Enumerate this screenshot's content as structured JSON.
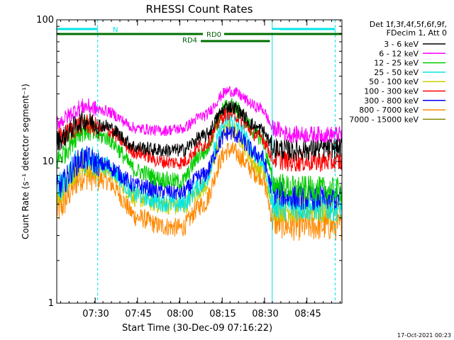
{
  "chart_data": {
    "type": "line",
    "title": "RHESSI Count Rates",
    "xlabel": "Start Time (30-Dec-09 07:16:22)",
    "ylabel": "Count Rate (s⁻¹ detector segment⁻¹)",
    "yscale": "log",
    "ylim": [
      1,
      100
    ],
    "xlim_minutes": [
      0,
      101
    ],
    "x_start": "07:16:22",
    "x_ticks": [
      {
        "label": "07:30",
        "minute": 13.6
      },
      {
        "label": "07:45",
        "minute": 28.6
      },
      {
        "label": "08:00",
        "minute": 43.6
      },
      {
        "label": "08:15",
        "minute": 58.6
      },
      {
        "label": "08:30",
        "minute": 73.6
      },
      {
        "label": "08:45",
        "minute": 88.6
      }
    ],
    "y_ticks": [
      {
        "label": "1",
        "value": 1
      },
      {
        "label": "10",
        "value": 10
      },
      {
        "label": "100",
        "value": 100
      }
    ],
    "legend_header": [
      "Det 1f,3f,4f,5f,6f,9f,",
      "FDecim 1, Att 0"
    ],
    "legend_position": "top-right",
    "keyframes_minutes": [
      0,
      10,
      16,
      29,
      37,
      44,
      52,
      61,
      72,
      77,
      83,
      101
    ],
    "series": [
      {
        "name": "3 - 6 keV",
        "color": "#000000",
        "noise": 0.05,
        "values": [
          14.0,
          19.5,
          18.0,
          12.5,
          12.0,
          12.0,
          15.0,
          24.5,
          17.0,
          12.5,
          12.0,
          12.5
        ]
      },
      {
        "name": "6 - 12 keV",
        "color": "#ff00ff",
        "noise": 0.04,
        "values": [
          19.0,
          24.5,
          23.0,
          17.0,
          16.5,
          17.0,
          21.0,
          31.5,
          24.0,
          17.0,
          15.5,
          15.5
        ]
      },
      {
        "name": "12 - 25 keV",
        "color": "#00cc00",
        "noise": 0.06,
        "values": [
          10.5,
          17.0,
          15.0,
          8.5,
          7.5,
          7.2,
          11.5,
          25.0,
          15.0,
          7.0,
          6.5,
          6.3
        ]
      },
      {
        "name": "25 - 50 keV",
        "color": "#00e5e5",
        "noise": 0.07,
        "values": [
          6.5,
          10.5,
          9.5,
          5.8,
          5.2,
          5.0,
          7.0,
          19.5,
          10.5,
          5.0,
          4.8,
          4.8
        ]
      },
      {
        "name": "50 - 100 keV",
        "color": "#cccc00",
        "noise": 0.07,
        "values": [
          6.0,
          10.0,
          9.0,
          5.5,
          5.0,
          4.8,
          6.5,
          17.0,
          9.0,
          4.8,
          4.6,
          4.6
        ]
      },
      {
        "name": "100 - 300 keV",
        "color": "#ff0000",
        "noise": 0.05,
        "values": [
          14.5,
          18.5,
          17.0,
          11.5,
          10.0,
          9.8,
          13.0,
          22.0,
          15.0,
          10.5,
          10.0,
          10.0
        ]
      },
      {
        "name": "300 - 800 keV",
        "color": "#0000ff",
        "noise": 0.06,
        "values": [
          6.5,
          10.5,
          9.5,
          6.7,
          6.2,
          6.0,
          8.0,
          16.0,
          11.0,
          6.0,
          5.6,
          5.5
        ]
      },
      {
        "name": "800 - 7000 keV",
        "color": "#ff8800",
        "noise": 0.07,
        "values": [
          4.5,
          8.0,
          7.5,
          4.0,
          3.5,
          3.4,
          5.0,
          12.0,
          8.0,
          3.7,
          3.5,
          3.5
        ]
      },
      {
        "name": "7000 - 15000 keV",
        "color": "#888800",
        "noise": 0.0,
        "values": []
      }
    ],
    "annotations": {
      "attenuator_label": "N",
      "decimation_label": "RD0",
      "rear_decim_label": "RD4",
      "vertical_markers_minutes": [
        0,
        14.5,
        76.3,
        98.6
      ]
    }
  }
}
